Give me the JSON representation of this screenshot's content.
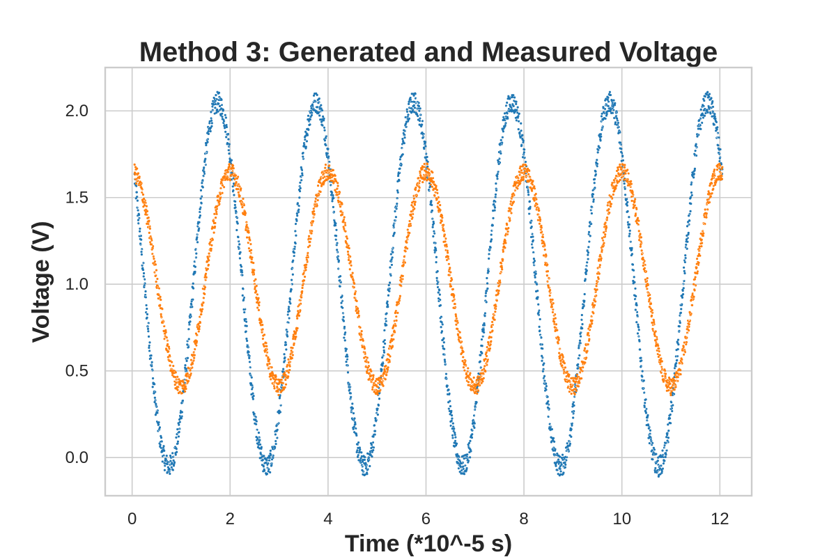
{
  "chart_data": {
    "type": "scatter",
    "title": "Method 3: Generated and Measured Voltage",
    "xlabel": "Time (*10^-5 s)",
    "ylabel": "Voltage (V)",
    "xlim": [
      -0.55,
      12.65
    ],
    "ylim": [
      -0.22,
      2.25
    ],
    "x_ticks": [
      0,
      2,
      4,
      6,
      8,
      10,
      12
    ],
    "x_tick_labels": [
      "0",
      "2",
      "4",
      "6",
      "8",
      "10",
      "12"
    ],
    "y_ticks": [
      0.0,
      0.5,
      1.0,
      1.5,
      2.0
    ],
    "y_tick_labels": [
      "0.0",
      "0.5",
      "1.0",
      "1.5",
      "2.0"
    ],
    "grid": true,
    "legend": "none",
    "period": 2.0,
    "x_range": [
      0.05,
      12.05
    ],
    "series": [
      {
        "color": "#1f77b4",
        "description": "sinusoid, peaks near x = 1.75 + 2k, troughs near x = 0.75 + 2k",
        "center": 1.0,
        "amplitude": 1.05,
        "phase_peak_x": 1.75,
        "noise": 0.06
      },
      {
        "color": "#ff7f0e",
        "description": "sinusoid, peaks near x = 2.0 + 2k, troughs near x = 1.0 + 2k",
        "center": 1.03,
        "amplitude": 0.62,
        "phase_peak_x": 2.0,
        "noise": 0.05
      }
    ]
  }
}
